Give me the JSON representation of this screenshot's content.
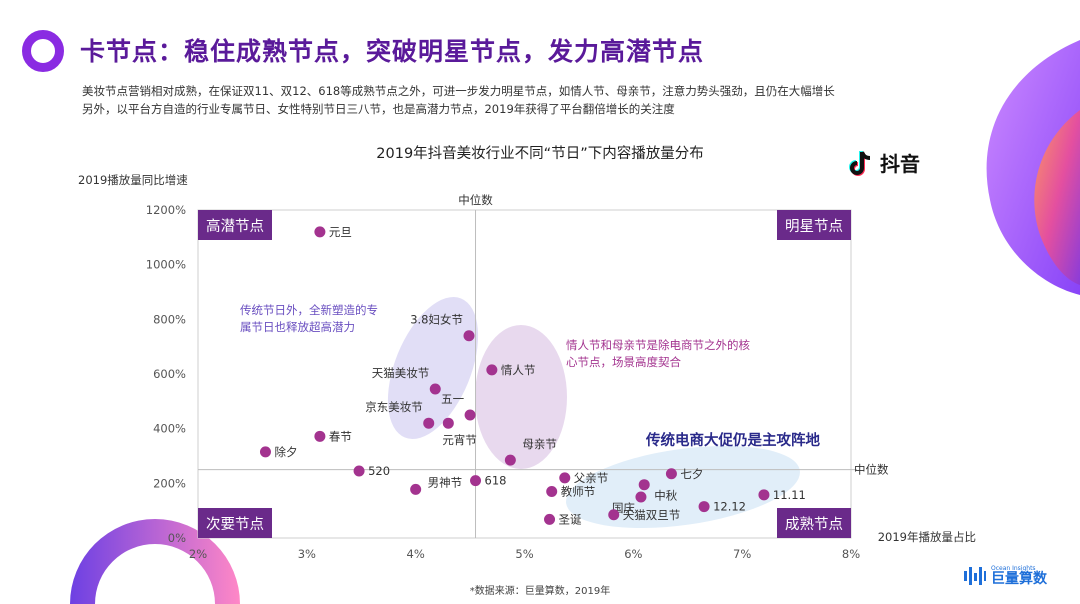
{
  "header": {
    "title": "卡节点：稳住成熟节点，突破明星节点，发力高潜节点",
    "description_line1": "美妆节点营销相对成熟，在保证双11、双12、618等成熟节点之外，可进一步发力明星节点，如情人节、母亲节，注意力势头强劲，且仍在大幅增长",
    "description_line2": "另外，以平台方自造的行业专属节日、女性特别节日三八节，也是高潜力节点，2019年获得了平台翻倍增长的关注度"
  },
  "brand": {
    "tiktok_label": "抖音",
    "ocean_engine_sub": "Ocean Insights",
    "ocean_engine_label": "巨量算数"
  },
  "footer": {
    "source": "*数据来源：巨量算数，2019年"
  },
  "colors": {
    "title": "#5a1a9a",
    "point": "#a3338f",
    "quadrant_label_bg": "#6a2a8a",
    "annotation_purple": "#6a4fc0",
    "annotation_pink": "#a3338f",
    "annotation_blue": "#2a2a8a"
  },
  "chart_data": {
    "type": "scatter",
    "title": "2019年抖音美妆行业不同“节日”下内容播放量分布",
    "xlabel": "2019年播放量占比",
    "ylabel": "2019播放量同比增速",
    "xlim": [
      2,
      8
    ],
    "ylim": [
      0,
      1200
    ],
    "x_ticks": [
      "2%",
      "3%",
      "4%",
      "5%",
      "6%",
      "7%",
      "8%"
    ],
    "y_ticks": [
      "0%",
      "200%",
      "400%",
      "600%",
      "800%",
      "1000%",
      "1200%"
    ],
    "median_x": 4.55,
    "median_y": 250,
    "median_label_x": "中位数",
    "median_label_y": "中位数",
    "quadrants": {
      "top_left": "高潜节点",
      "top_right": "明星节点",
      "bottom_left": "次要节点",
      "bottom_right": "成熟节点"
    },
    "points": [
      {
        "name": "元旦",
        "x": 3.12,
        "y": 1120,
        "label_pos": "right"
      },
      {
        "name": "3.8妇女节",
        "x": 4.49,
        "y": 740,
        "label_pos": "topleft"
      },
      {
        "name": "情人节",
        "x": 4.7,
        "y": 615,
        "label_pos": "right"
      },
      {
        "name": "天猫美妆节",
        "x": 4.18,
        "y": 545,
        "label_pos": "topleft"
      },
      {
        "name": "五一",
        "x": 4.5,
        "y": 450,
        "label_pos": "topleft"
      },
      {
        "name": "京东美妆节",
        "x": 4.12,
        "y": 420,
        "label_pos": "topleft"
      },
      {
        "name": "元宵节",
        "x": 4.3,
        "y": 420,
        "label_pos": "below"
      },
      {
        "name": "春节",
        "x": 3.12,
        "y": 372,
        "label_pos": "right"
      },
      {
        "name": "除夕",
        "x": 2.62,
        "y": 315,
        "label_pos": "right"
      },
      {
        "name": "母亲节",
        "x": 4.87,
        "y": 285,
        "label_pos": "topright"
      },
      {
        "name": "520",
        "x": 3.48,
        "y": 245,
        "label_pos": "right"
      },
      {
        "name": "七夕",
        "x": 6.35,
        "y": 235,
        "label_pos": "right"
      },
      {
        "name": "父亲节",
        "x": 5.37,
        "y": 220,
        "label_pos": "right"
      },
      {
        "name": "618",
        "x": 4.55,
        "y": 210,
        "label_pos": "right"
      },
      {
        "name": "中秋",
        "x": 6.1,
        "y": 195,
        "label_pos": "belowright"
      },
      {
        "name": "男神节",
        "x": 4.0,
        "y": 178,
        "label_pos": "righttop"
      },
      {
        "name": "教师节",
        "x": 5.25,
        "y": 170,
        "label_pos": "right"
      },
      {
        "name": "11.11",
        "x": 7.2,
        "y": 158,
        "label_pos": "right"
      },
      {
        "name": "国庆",
        "x": 6.07,
        "y": 150,
        "label_pos": "belowleft"
      },
      {
        "name": "12.12",
        "x": 6.65,
        "y": 115,
        "label_pos": "right"
      },
      {
        "name": "天猫双旦节",
        "x": 5.82,
        "y": 85,
        "label_pos": "right"
      },
      {
        "name": "圣诞",
        "x": 5.23,
        "y": 68,
        "label_pos": "right"
      }
    ],
    "annotations": [
      {
        "text_line1": "传统节日外，全新塑造的专",
        "text_line2": "属节日也释放超高潜力",
        "color": "purple"
      },
      {
        "text_line1": "情人节和母亲节是除电商节之外的核",
        "text_line2": "心节点，场景高度契合",
        "color": "pink"
      },
      {
        "text_line1": "传统电商大促仍是主攻阵地",
        "text_line2": "",
        "color": "blue"
      }
    ]
  }
}
